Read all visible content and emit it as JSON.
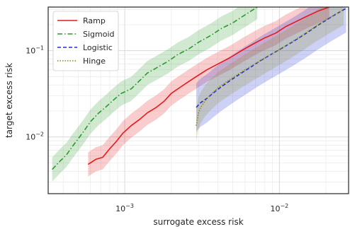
{
  "chart_data": {
    "type": "line",
    "xlabel": "surrogate excess risk",
    "ylabel": "target excess risk",
    "xscale": "log",
    "yscale": "log",
    "xlim": [
      0.00032,
      0.028
    ],
    "ylim": [
      0.0022,
      0.32
    ],
    "grid": true,
    "legend_position": "top-left",
    "x_ticks": [
      {
        "value": 0.001,
        "base": "10",
        "exp": "−3"
      },
      {
        "value": 0.01,
        "base": "10",
        "exp": "−2"
      }
    ],
    "y_ticks": [
      {
        "value": 0.01,
        "base": "10",
        "exp": "−2"
      },
      {
        "value": 0.1,
        "base": "10",
        "exp": "−1"
      }
    ],
    "series": [
      {
        "name": "Ramp",
        "color": "#e41a1c",
        "dash": "solid",
        "x": [
          0.00058,
          0.00065,
          0.00072,
          0.0008,
          0.00088,
          0.00097,
          0.0011,
          0.00125,
          0.0014,
          0.0016,
          0.0018,
          0.002,
          0.0023,
          0.0026,
          0.003,
          0.0034,
          0.004,
          0.0048,
          0.0058,
          0.0068,
          0.008,
          0.0095,
          0.011,
          0.013,
          0.015,
          0.018,
          0.021
        ],
        "y": [
          0.0048,
          0.0055,
          0.0058,
          0.0073,
          0.0088,
          0.011,
          0.0135,
          0.016,
          0.019,
          0.022,
          0.026,
          0.032,
          0.038,
          0.044,
          0.052,
          0.06,
          0.07,
          0.083,
          0.102,
          0.12,
          0.14,
          0.16,
          0.19,
          0.22,
          0.25,
          0.29,
          0.32
        ],
        "band": 0.14
      },
      {
        "name": "Sigmoid",
        "color": "#2a9a2a",
        "dash": "dashdot",
        "x": [
          0.00034,
          0.00038,
          0.00042,
          0.00046,
          0.0005,
          0.00055,
          0.0006,
          0.00068,
          0.00075,
          0.00085,
          0.00095,
          0.0011,
          0.00125,
          0.0014,
          0.0016,
          0.0019,
          0.0022,
          0.0026,
          0.003,
          0.0036,
          0.0042,
          0.005,
          0.006,
          0.0072
        ],
        "y": [
          0.0042,
          0.0052,
          0.0062,
          0.0078,
          0.0095,
          0.012,
          0.015,
          0.019,
          0.022,
          0.027,
          0.032,
          0.036,
          0.045,
          0.055,
          0.063,
          0.075,
          0.09,
          0.105,
          0.125,
          0.15,
          0.18,
          0.21,
          0.26,
          0.32
        ],
        "band": 0.14
      },
      {
        "name": "Logistic",
        "color": "#1f2fd6",
        "dash": "dashed",
        "x": [
          0.0029,
          0.0031,
          0.0034,
          0.0038,
          0.0042,
          0.0048,
          0.0055,
          0.0064,
          0.0075,
          0.0088,
          0.0105,
          0.0125,
          0.015,
          0.018,
          0.022,
          0.027
        ],
        "y": [
          0.022,
          0.025,
          0.028,
          0.033,
          0.038,
          0.045,
          0.053,
          0.063,
          0.076,
          0.09,
          0.108,
          0.13,
          0.16,
          0.2,
          0.25,
          0.31
        ],
        "band": 0.28
      },
      {
        "name": "Hinge",
        "color": "#8a8a1a",
        "dash": "dotted",
        "x": [
          0.0029,
          0.00295,
          0.003,
          0.0031,
          0.0033,
          0.0036,
          0.004,
          0.0045,
          0.0052,
          0.006,
          0.007,
          0.0082,
          0.0097,
          0.0115,
          0.014,
          0.017,
          0.021,
          0.026
        ],
        "y": [
          0.0135,
          0.016,
          0.019,
          0.022,
          0.026,
          0.031,
          0.037,
          0.043,
          0.051,
          0.06,
          0.071,
          0.084,
          0.1,
          0.12,
          0.15,
          0.19,
          0.24,
          0.3
        ],
        "band": 0.18
      }
    ]
  }
}
